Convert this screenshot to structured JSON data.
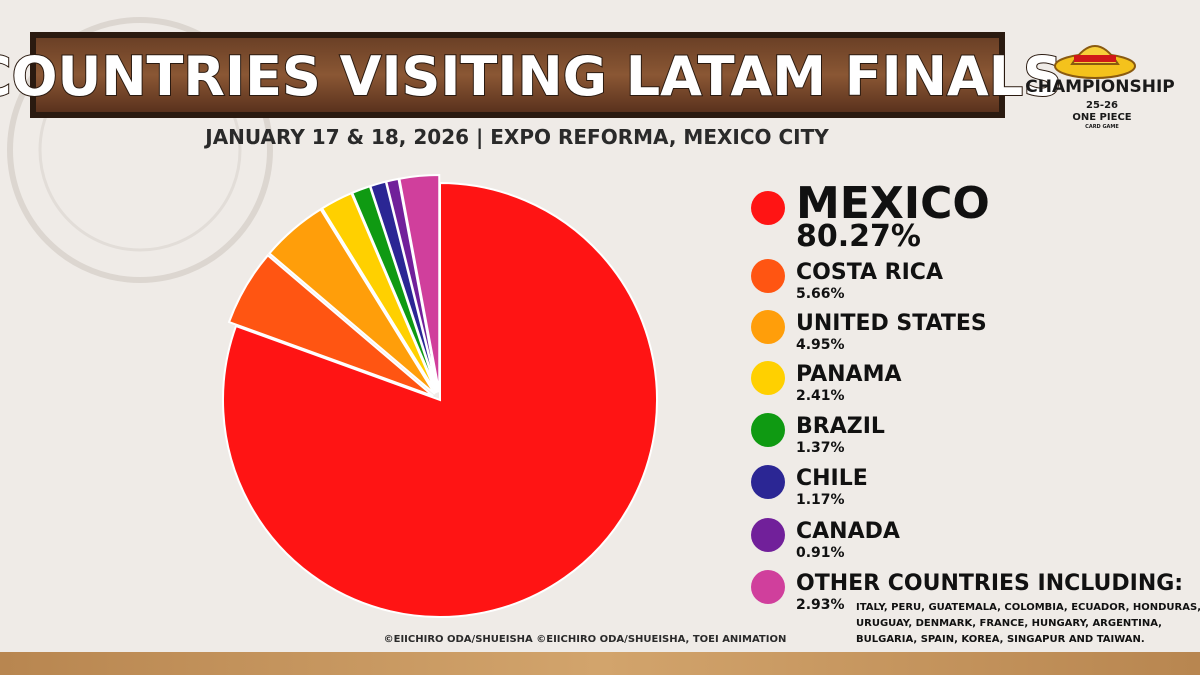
{
  "chart_data": {
    "type": "pie",
    "title": "COUNTRIES VISITING LATAM FINALS",
    "subtitle": "JANUARY 17 & 18, 2026 | EXPO REFORMA, MEXICO CITY",
    "categories": [
      "MEXICO",
      "COSTA RICA",
      "UNITED STATES",
      "PANAMA",
      "BRAZIL",
      "CHILE",
      "CANADA",
      "OTHER COUNTRIES INCLUDING:"
    ],
    "values": [
      80.27,
      5.66,
      4.95,
      2.41,
      1.37,
      1.17,
      0.91,
      2.93
    ],
    "value_labels": [
      "80.27%",
      "5.66%",
      "4.95%",
      "2.41%",
      "1.37%",
      "1.17%",
      "0.91%",
      "2.93%"
    ],
    "colors": [
      "#ff1414",
      "#ff5512",
      "#ff9e0a",
      "#ffd000",
      "#0f9a12",
      "#2b2694",
      "#71209a",
      "#d03f9c"
    ],
    "note_lines": [
      "ITALY, PERU, GUATEMALA, COLOMBIA, ECUADOR, HONDURAS,",
      "URUGUAY, DENMARK, FRANCE, HUNGARY, ARGENTINA,",
      "BULGARIA, SPAIN, KOREA, SINGAPUR AND TAIWAN."
    ],
    "credit": "©EIICHIRO ODA/SHUEISHA ©EIICHIRO ODA/SHUEISHA, TOEI ANIMATION"
  },
  "logo": {
    "title": "CHAMPIONSHIP",
    "season": "25-26",
    "brand": "ONE PIECE",
    "subtitle": "CARD GAME"
  }
}
